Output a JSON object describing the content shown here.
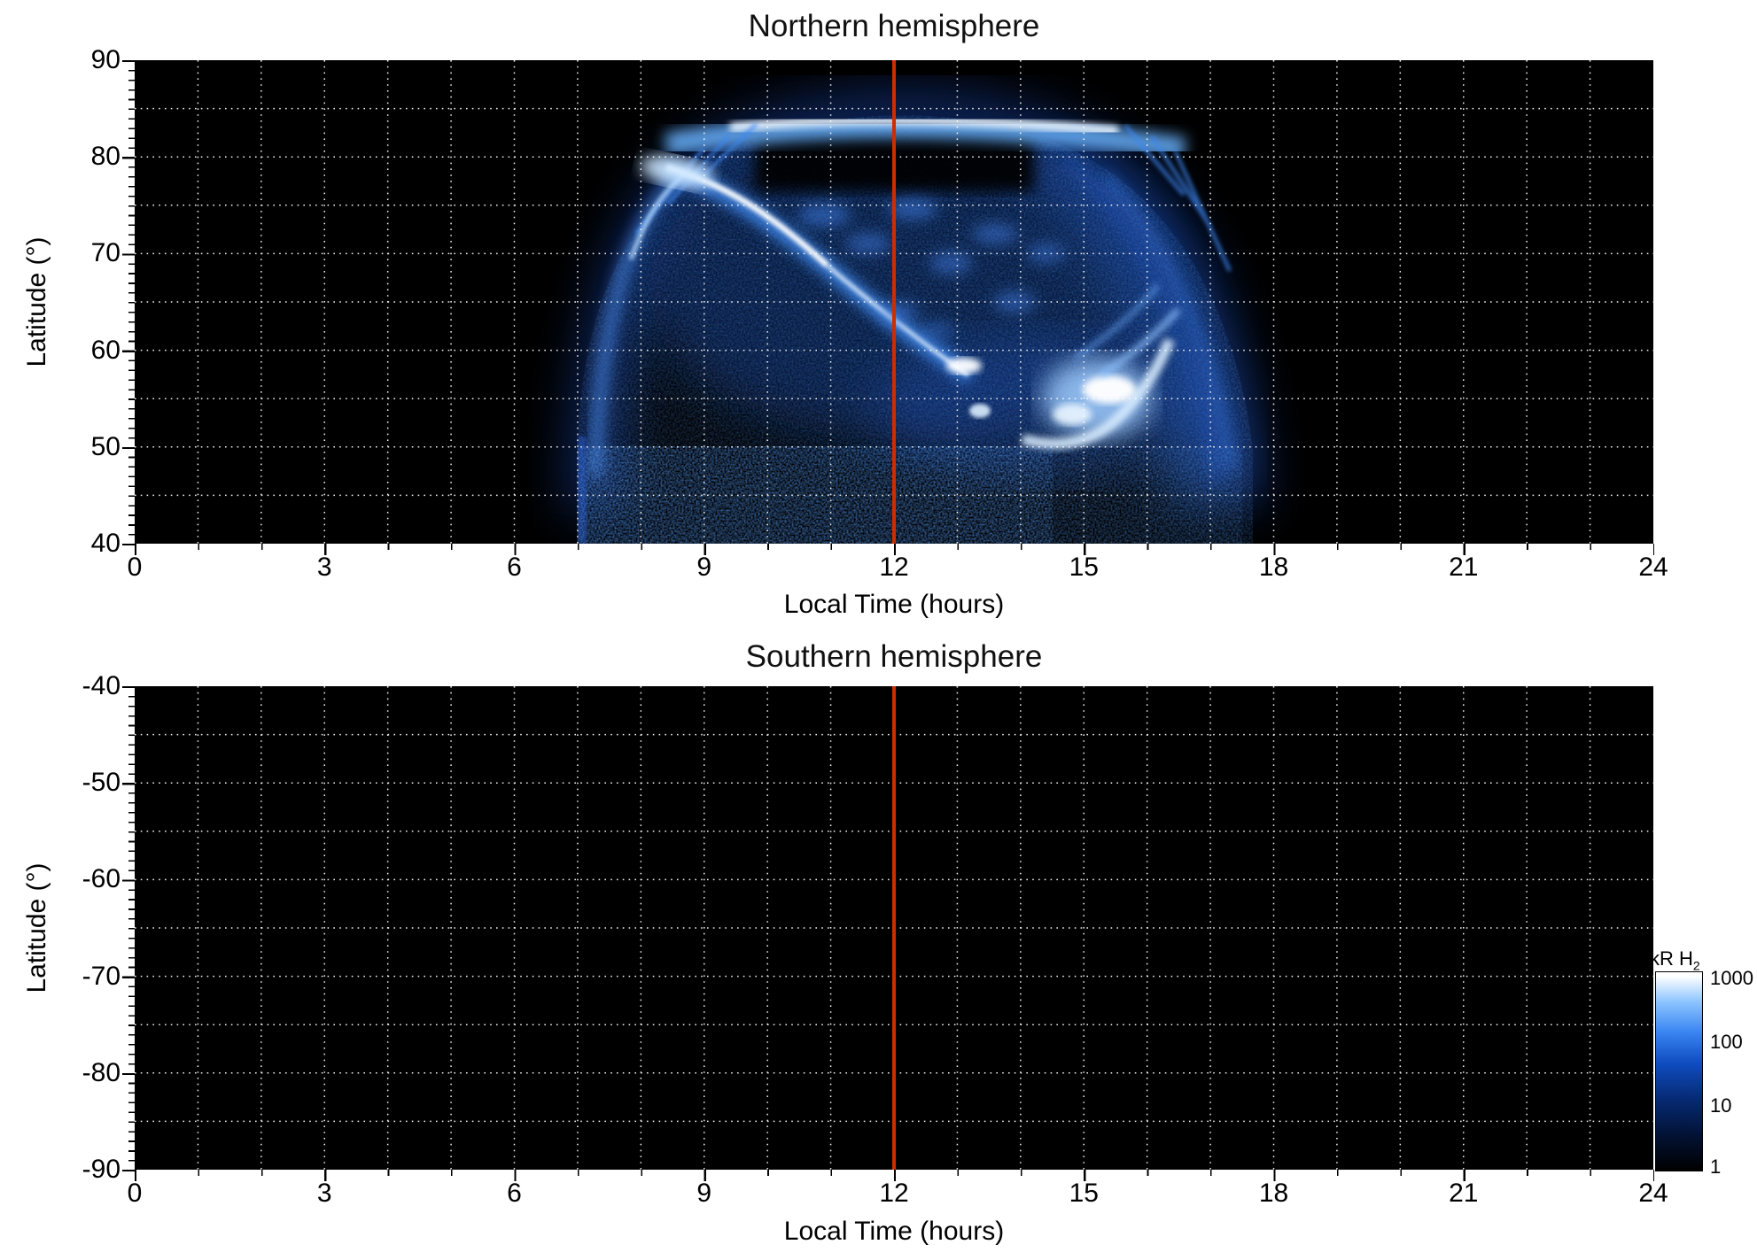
{
  "north": {
    "title": "Northern hemisphere",
    "xlabel": "Local Time (hours)",
    "ylabel": "Latitude (°)",
    "x_ticks": [
      "0",
      "3",
      "6",
      "9",
      "12",
      "15",
      "18",
      "21",
      "24"
    ],
    "y_ticks": [
      "90",
      "80",
      "70",
      "60",
      "50",
      "40"
    ]
  },
  "south": {
    "title": "Southern hemisphere",
    "xlabel": "Local Time (hours)",
    "ylabel": "Latitude (°)",
    "x_ticks": [
      "0",
      "3",
      "6",
      "9",
      "12",
      "15",
      "18",
      "21",
      "24"
    ],
    "y_ticks": [
      "-40",
      "-50",
      "-60",
      "-70",
      "-80",
      "-90"
    ]
  },
  "colorbar": {
    "unit_main": "kR H",
    "unit_sub": "2",
    "ticks": [
      "1000",
      "100",
      "10",
      "1"
    ]
  },
  "colors": {
    "page_background": "#ffffff",
    "panel_background": "#000000",
    "grid": "#ffffff",
    "noon_reference_line": "#cc2e00",
    "emission_low": "#02102e",
    "emission_mid": "#2a66d8",
    "emission_high": "#ffffff"
  },
  "chart_data": [
    {
      "type": "heatmap",
      "title": "Northern hemisphere",
      "xlabel": "Local Time (hours)",
      "ylabel": "Latitude (°)",
      "xlim": [
        0,
        24
      ],
      "ylim": [
        40,
        90
      ],
      "x_major_ticks": [
        0,
        3,
        6,
        9,
        12,
        15,
        18,
        21,
        24
      ],
      "y_major_ticks": [
        40,
        50,
        60,
        70,
        80,
        90
      ],
      "grid": "white dotted gridlines every 1 hour and every 5 degrees",
      "background": "black (no data / no emission)",
      "colorscale": {
        "label": "kR H2",
        "scale": "log",
        "range": [
          1,
          1000
        ],
        "colors": [
          "#000000",
          "#062a74",
          "#0f4cc0",
          "#3a86f2",
          "#8cc4ff",
          "#ffffff"
        ]
      },
      "reference_line": {
        "x": 12,
        "orientation": "vertical",
        "color": "#cc2e00"
      },
      "coverage_local_time": [
        7,
        18
      ],
      "features": [
        {
          "name": "polar-cap bright band",
          "local_time": [
            9,
            15.5
          ],
          "latitude": [
            82.5,
            85.5
          ],
          "intensity_kR": 300,
          "note": "jagged light-blue band with near-white core"
        },
        {
          "name": "dark polar gap",
          "local_time": [
            10,
            14
          ],
          "latitude": [
            77,
            83
          ],
          "intensity_kR": 1
        },
        {
          "name": "main diagonal auroral arc",
          "path_local_time": [
            8.3,
            13.2
          ],
          "path_latitude": [
            78,
            57
          ],
          "intensity_kR": 1000,
          "note": "bright white streak, brightest near 08:30-10:00 / 74-78 deg"
        },
        {
          "name": "afternoon bright hook",
          "local_time": [
            14.2,
            16.2
          ],
          "latitude": [
            51,
            62
          ],
          "intensity_kR": 1000,
          "note": "white blob with hook-shaped arc opening toward upper right"
        },
        {
          "name": "patchy dayside emission",
          "local_time": [
            10.5,
            15
          ],
          "latitude": [
            58,
            77
          ],
          "intensity_kR": 60
        },
        {
          "name": "dawn-side rim",
          "local_time": [
            7,
            8.5
          ],
          "latitude": [
            45,
            80
          ],
          "intensity_kR": 40
        },
        {
          "name": "dusk-side diffuse fan",
          "local_time": [
            15.5,
            18
          ],
          "latitude": [
            45,
            82
          ],
          "intensity_kR": 80
        },
        {
          "name": "low-latitude speckle band",
          "local_time": [
            7,
            14.6
          ],
          "latitude": [
            40,
            50.5
          ],
          "intensity_kR": 5
        },
        {
          "name": "faint low-latitude speckle (dusk)",
          "local_time": [
            14.6,
            17.5
          ],
          "latitude": [
            40,
            50.5
          ],
          "intensity_kR": 2
        }
      ]
    },
    {
      "type": "heatmap",
      "title": "Southern hemisphere",
      "xlabel": "Local Time (hours)",
      "ylabel": "Latitude (°)",
      "xlim": [
        0,
        24
      ],
      "ylim": [
        -90,
        -40
      ],
      "x_major_ticks": [
        0,
        3,
        6,
        9,
        12,
        15,
        18,
        21,
        24
      ],
      "y_major_ticks": [
        -90,
        -80,
        -70,
        -60,
        -50,
        -40
      ],
      "grid": "white dotted gridlines every 1 hour and every 5 degrees",
      "values": "no emission observed — entire panel black",
      "reference_line": {
        "x": 12,
        "orientation": "vertical",
        "color": "#cc2e00"
      }
    }
  ]
}
